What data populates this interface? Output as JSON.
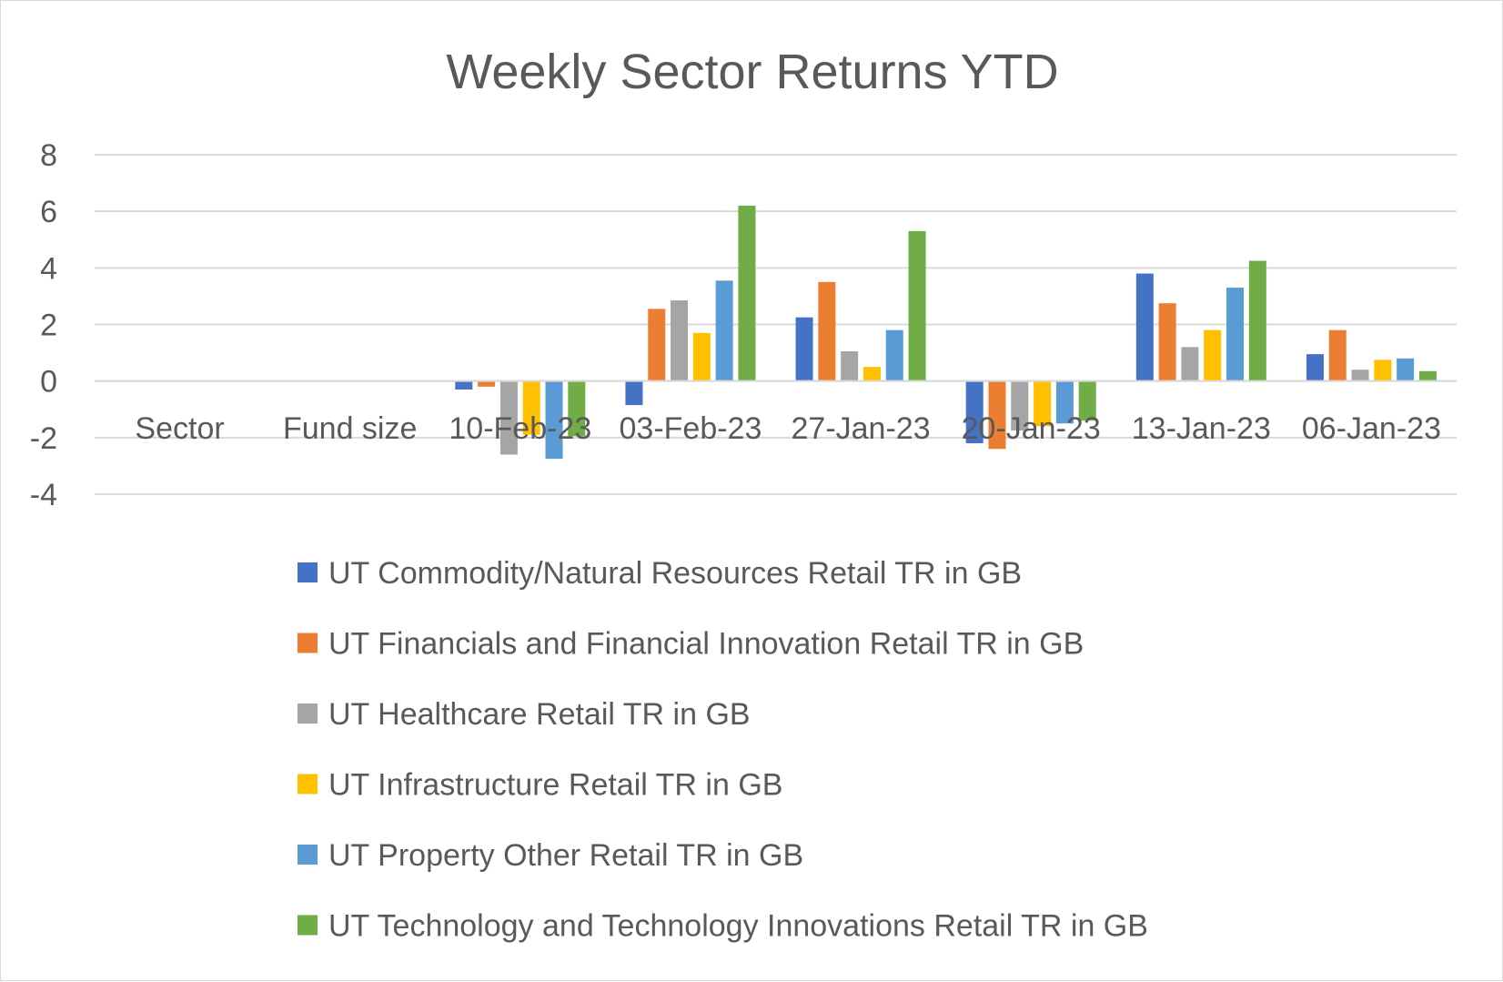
{
  "chart_data": {
    "type": "bar",
    "title": "Weekly Sector Returns YTD",
    "xlabel": "",
    "ylabel": "",
    "ylim": [
      -4,
      8
    ],
    "yticks": [
      8,
      6,
      4,
      2,
      0,
      -2,
      -4
    ],
    "grid": true,
    "legend_position": "bottom",
    "categories": [
      "Sector",
      "Fund size",
      "10-Feb-23",
      "03-Feb-23",
      "27-Jan-23",
      "20-Jan-23",
      "13-Jan-23",
      "06-Jan-23"
    ],
    "series": [
      {
        "name": "UT Commodity/Natural Resources Retail TR in GB",
        "color": "#4472C4",
        "values": [
          null,
          null,
          -0.3,
          -0.85,
          2.25,
          -2.2,
          3.8,
          0.95
        ]
      },
      {
        "name": "UT Financials and Financial Innovation Retail TR in GB",
        "color": "#ED7D31",
        "values": [
          null,
          null,
          -0.2,
          2.55,
          3.5,
          -2.4,
          2.75,
          1.8
        ]
      },
      {
        "name": "UT Healthcare Retail TR in GB",
        "color": "#A5A5A5",
        "values": [
          null,
          null,
          -2.6,
          2.85,
          1.05,
          -1.75,
          1.2,
          0.4
        ]
      },
      {
        "name": "UT Infrastructure Retail TR in GB",
        "color": "#FFC000",
        "values": [
          null,
          null,
          -1.9,
          1.7,
          0.5,
          -1.6,
          1.8,
          0.75
        ]
      },
      {
        "name": "UT Property Other Retail TR in GB",
        "color": "#5B9BD5",
        "values": [
          null,
          null,
          -2.75,
          3.55,
          1.8,
          -1.5,
          3.3,
          0.8
        ]
      },
      {
        "name": "UT Technology and Technology Innovations Retail TR in GB",
        "color": "#70AD47",
        "values": [
          null,
          null,
          -1.95,
          6.2,
          5.3,
          -1.4,
          4.25,
          0.35
        ]
      }
    ]
  }
}
